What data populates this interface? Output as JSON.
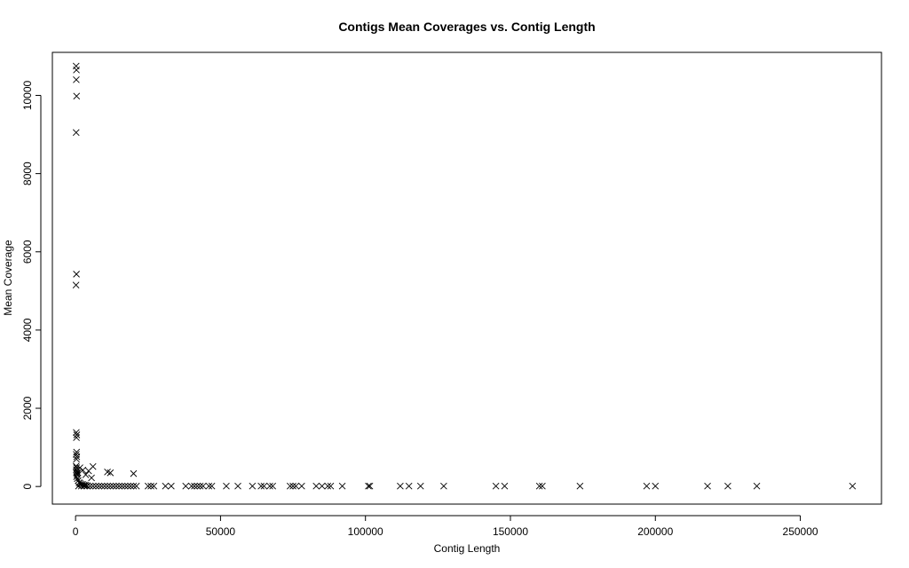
{
  "chart_data": {
    "type": "scatter",
    "title": "Contigs Mean Coverages vs. Contig Length",
    "xlabel": "Contig Length",
    "ylabel": "Mean Coverage",
    "xlim": [
      -8000,
      278000
    ],
    "ylim": [
      -450,
      11100
    ],
    "xticks": [
      0,
      50000,
      100000,
      150000,
      200000,
      250000
    ],
    "xtick_labels": [
      "0",
      "50000",
      "100000",
      "150000",
      "200000",
      "250000"
    ],
    "yticks": [
      0,
      2000,
      4000,
      6000,
      8000,
      10000
    ],
    "ytick_labels": [
      "0",
      "2000",
      "4000",
      "6000",
      "8000",
      "10000"
    ],
    "grid": false,
    "marker": "x",
    "series": [
      {
        "x": [
          200,
          300,
          250,
          350,
          200,
          300,
          150,
          250,
          400,
          300,
          350,
          250,
          400,
          300,
          200,
          350,
          250,
          450,
          300,
          500,
          350,
          600,
          900,
          1200,
          1500,
          2000,
          2500,
          3000,
          3500,
          4000,
          800,
          1500,
          2500,
          3500,
          4500,
          5500,
          1000,
          2000,
          3000,
          4000,
          5000,
          6000,
          7000,
          8000,
          9000,
          10000,
          11000,
          12000,
          13000,
          14000,
          15000,
          16000,
          17000,
          18000,
          19000,
          20000,
          21000,
          6000,
          11000,
          12000,
          20000,
          25000,
          26000,
          27000,
          31000,
          33000,
          38000,
          40000,
          41000,
          42000,
          43000,
          44000,
          46000,
          47000,
          52000,
          56000,
          61000,
          64000,
          65000,
          67000,
          68000,
          74000,
          75000,
          76000,
          78000,
          83000,
          85000,
          87000,
          88000,
          92000,
          101000,
          101500,
          112000,
          115000,
          119000,
          127000,
          145000,
          148000,
          160000,
          161000,
          174000,
          197000,
          200000,
          218000,
          225000,
          235000,
          268000
        ],
        "y": [
          10750,
          10650,
          10400,
          9980,
          9050,
          5430,
          5150,
          1380,
          1320,
          1250,
          880,
          820,
          760,
          700,
          520,
          480,
          430,
          400,
          350,
          300,
          250,
          200,
          150,
          100,
          80,
          60,
          50,
          40,
          30,
          20,
          350,
          480,
          420,
          300,
          400,
          220,
          10,
          10,
          10,
          10,
          10,
          10,
          10,
          10,
          10,
          10,
          10,
          10,
          10,
          10,
          10,
          10,
          10,
          10,
          10,
          10,
          10,
          510,
          370,
          350,
          330,
          10,
          10,
          10,
          10,
          10,
          10,
          10,
          10,
          10,
          10,
          10,
          10,
          10,
          10,
          10,
          10,
          10,
          10,
          10,
          10,
          10,
          10,
          10,
          10,
          10,
          10,
          10,
          10,
          10,
          10,
          10,
          10,
          10,
          10,
          10,
          10,
          10,
          10,
          10,
          10,
          10,
          10,
          10,
          10,
          10,
          10
        ]
      }
    ]
  }
}
